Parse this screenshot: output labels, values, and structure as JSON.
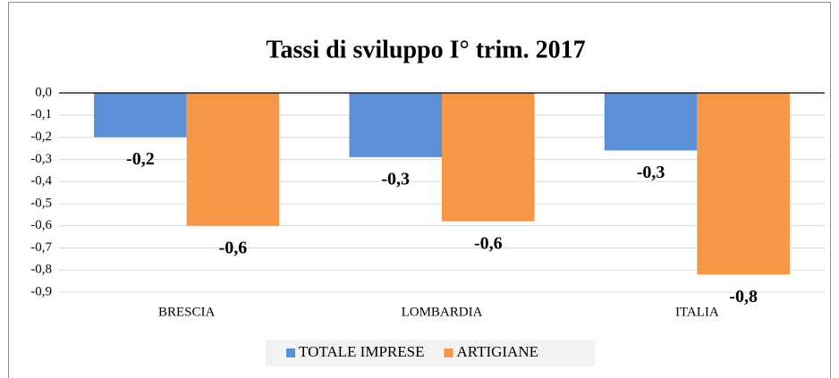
{
  "chart_data": {
    "type": "bar",
    "title": "Tassi di sviluppo I° trim. 2017",
    "categories": [
      "BRESCIA",
      "LOMBARDIA",
      "ITALIA"
    ],
    "series": [
      {
        "name": "TOTALE IMPRESE",
        "color": "#5b8fd6",
        "values": [
          -0.2,
          -0.29,
          -0.26
        ],
        "value_labels": [
          "-0,2",
          "-0,3",
          "-0,3"
        ]
      },
      {
        "name": "ARTIGIANE",
        "color": "#f79646",
        "values": [
          -0.6,
          -0.58,
          -0.82
        ],
        "value_labels": [
          "-0,6",
          "-0,6",
          "-0,8"
        ]
      }
    ],
    "ylim": [
      -0.9,
      0
    ],
    "yticks": [
      {
        "value": 0,
        "label": "0,0"
      },
      {
        "value": -0.1,
        "label": "-0,1"
      },
      {
        "value": -0.2,
        "label": "-0,2"
      },
      {
        "value": -0.3,
        "label": "-0,3"
      },
      {
        "value": -0.4,
        "label": "-0,4"
      },
      {
        "value": -0.5,
        "label": "-0,5"
      },
      {
        "value": -0.6,
        "label": "-0,6"
      },
      {
        "value": -0.7,
        "label": "-0,7"
      },
      {
        "value": -0.8,
        "label": "-0,8"
      },
      {
        "value": -0.9,
        "label": "-0,9"
      }
    ],
    "grid": true,
    "legend": "bottom"
  }
}
